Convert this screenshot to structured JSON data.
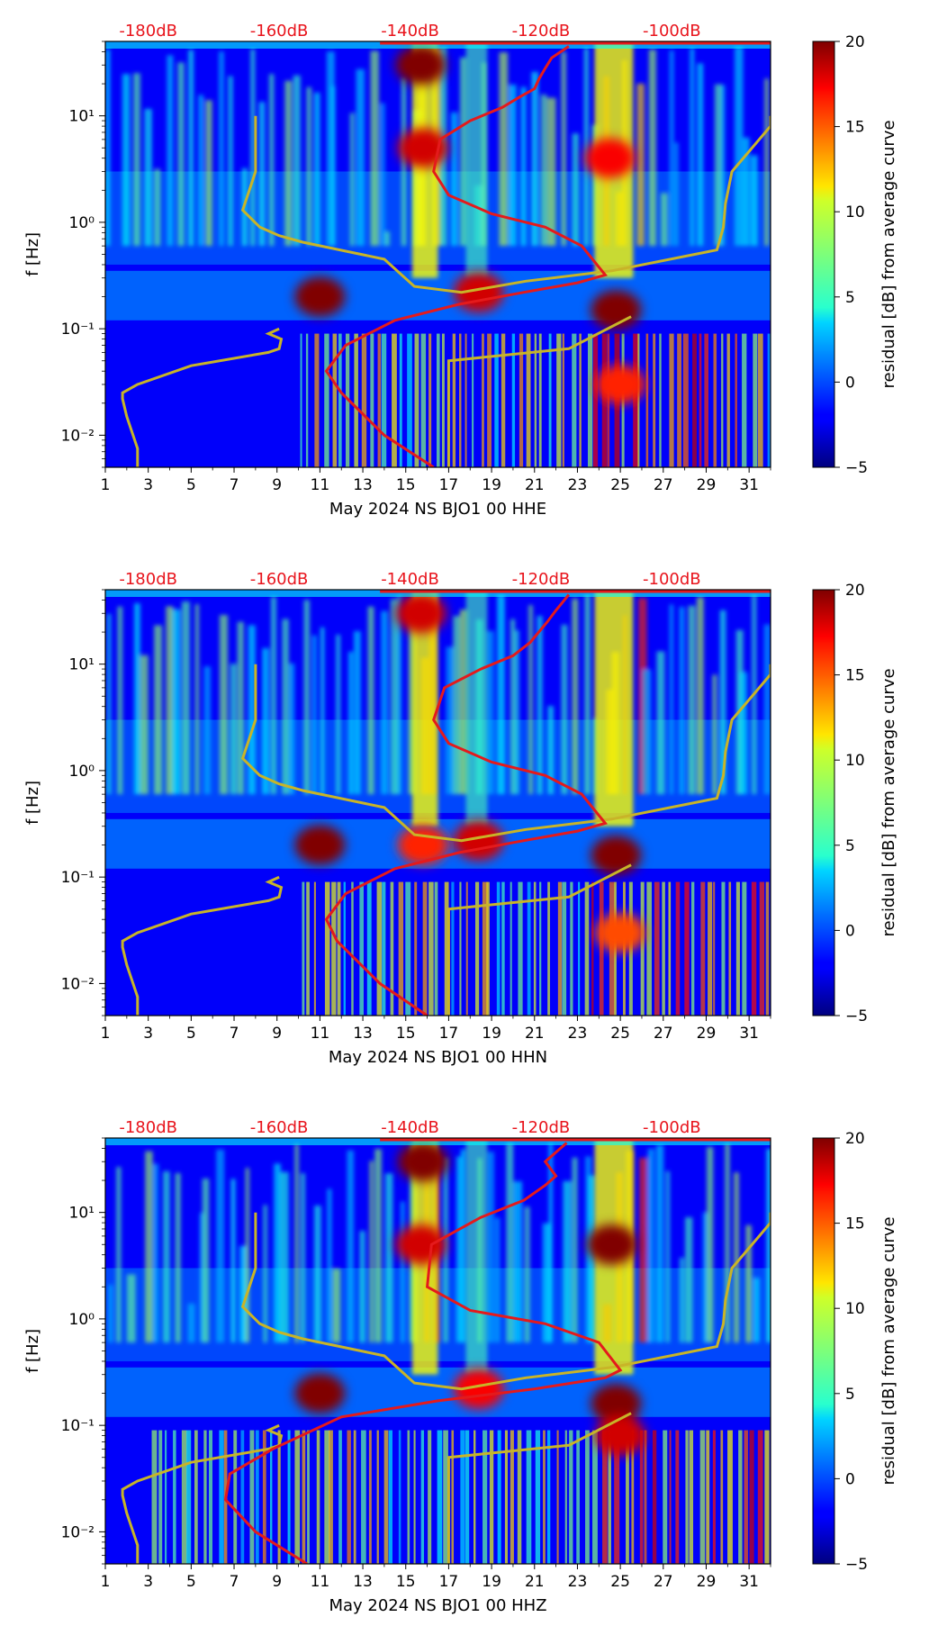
{
  "colors": {
    "noise_model": "#c8b428",
    "median_curve": "#e41a1c",
    "db_labels": "#e8141c"
  },
  "colorbar": {
    "label": "residual [dB] from average curve",
    "min": -5,
    "max": 20,
    "ticks": [
      -5,
      0,
      5,
      10,
      15,
      20
    ],
    "tick_labels": [
      "−5",
      "0",
      "5",
      "10",
      "15",
      "20"
    ],
    "colormap": "jet"
  },
  "chart_data": [
    {
      "type": "heatmap",
      "title": "",
      "xlabel": "May 2024 NS BJO1 00 HHE",
      "ylabel": "f [Hz]",
      "x_ticks": [
        "1",
        "3",
        "5",
        "7",
        "9",
        "11",
        "13",
        "15",
        "17",
        "19",
        "21",
        "23",
        "25",
        "27",
        "29",
        "31"
      ],
      "x_range": [
        1,
        32
      ],
      "y_scale": "log",
      "y_range": [
        0.005,
        50
      ],
      "y_tick_labels": [
        "10⁻²",
        "10⁻¹",
        "10⁰",
        "10¹"
      ],
      "top_axis_labels": [
        "-180dB",
        "-160dB",
        "-140dB",
        "-120dB",
        "-100dB"
      ],
      "top_axis_days": [
        3,
        9.1,
        15.2,
        21.3,
        27.4
      ],
      "noise_model_curve": {
        "days": [
          8.0,
          8.0,
          7.4,
          8.2,
          9.1,
          10.2,
          14.0,
          15.4,
          17.6,
          20.6,
          24.6,
          29.5,
          29.8,
          29.9,
          30.2,
          32.0,
          32.0
        ],
        "freq": [
          10,
          3,
          1.3,
          0.9,
          0.75,
          0.65,
          0.45,
          0.25,
          0.22,
          0.28,
          0.35,
          0.55,
          0.9,
          1.5,
          3,
          8,
          10
        ],
        "lower_days": [
          2.5,
          2.5,
          2,
          1.8,
          1.8,
          2.5,
          5,
          8.6,
          9.1,
          9.2,
          8.6,
          9.1
        ],
        "lower_freq": [
          0.005,
          0.0075,
          0.015,
          0.022,
          0.025,
          0.03,
          0.045,
          0.06,
          0.065,
          0.08,
          0.09,
          0.1
        ]
      },
      "median_curve": {
        "days": [
          16.3,
          14.0,
          12.0,
          11.3,
          12.2,
          14.5,
          17.5,
          20.5,
          23.0,
          24.3,
          23.2,
          21.5,
          19.0,
          17.0,
          16.3,
          16.6,
          18.0,
          19.5,
          20.3,
          21.0,
          21.2,
          21.5,
          21.8,
          22.6
        ],
        "freq": [
          0.005,
          0.01,
          0.025,
          0.04,
          0.07,
          0.12,
          0.17,
          0.22,
          0.27,
          0.32,
          0.6,
          0.9,
          1.2,
          1.8,
          3,
          6,
          9,
          12,
          15,
          18,
          22,
          28,
          35,
          45
        ]
      },
      "hotspots": [
        {
          "day": 11.0,
          "freq": 0.2,
          "level": 20
        },
        {
          "day": 15.7,
          "freq": 30,
          "level": 20
        },
        {
          "day": 15.8,
          "freq": 5,
          "level": 18
        },
        {
          "day": 18.4,
          "freq": 0.22,
          "level": 18
        },
        {
          "day": 24.5,
          "freq": 4,
          "level": 17
        },
        {
          "day": 24.8,
          "freq": 0.15,
          "level": 20
        },
        {
          "day": 25.0,
          "freq": 0.03,
          "level": 16
        }
      ]
    },
    {
      "type": "heatmap",
      "title": "",
      "xlabel": "May 2024 NS BJO1 00 HHN",
      "ylabel": "f [Hz]",
      "x_ticks": [
        "1",
        "3",
        "5",
        "7",
        "9",
        "11",
        "13",
        "15",
        "17",
        "19",
        "21",
        "23",
        "25",
        "27",
        "29",
        "31"
      ],
      "x_range": [
        1,
        32
      ],
      "y_scale": "log",
      "y_range": [
        0.005,
        50
      ],
      "y_tick_labels": [
        "10⁻²",
        "10⁻¹",
        "10⁰",
        "10¹"
      ],
      "top_axis_labels": [
        "-180dB",
        "-160dB",
        "-140dB",
        "-120dB",
        "-100dB"
      ],
      "top_axis_days": [
        3,
        9.1,
        15.2,
        21.3,
        27.4
      ],
      "noise_model_curve": {
        "days": [
          8.0,
          8.0,
          7.4,
          8.2,
          9.1,
          10.2,
          14.0,
          15.4,
          17.6,
          20.6,
          24.6,
          29.5,
          29.8,
          29.9,
          30.2,
          32.0,
          32.0
        ],
        "freq": [
          10,
          3,
          1.3,
          0.9,
          0.75,
          0.65,
          0.45,
          0.25,
          0.22,
          0.28,
          0.35,
          0.55,
          0.9,
          1.5,
          3,
          8,
          10
        ],
        "lower_days": [
          2.5,
          2.5,
          2,
          1.8,
          1.8,
          2.5,
          5,
          8.6,
          9.1,
          9.2,
          8.6,
          9.1
        ],
        "lower_freq": [
          0.005,
          0.0075,
          0.015,
          0.022,
          0.025,
          0.03,
          0.045,
          0.06,
          0.065,
          0.08,
          0.09,
          0.1
        ]
      },
      "median_curve": {
        "days": [
          16.0,
          13.8,
          11.8,
          11.3,
          12.2,
          14.5,
          17.5,
          20.5,
          23.0,
          24.3,
          23.2,
          21.5,
          19.0,
          17.0,
          16.3,
          16.8,
          18.5,
          20.0,
          20.8,
          21.2,
          21.6,
          22.0,
          22.6
        ],
        "freq": [
          0.005,
          0.01,
          0.025,
          0.04,
          0.07,
          0.12,
          0.17,
          0.22,
          0.27,
          0.32,
          0.6,
          0.9,
          1.2,
          1.8,
          3,
          6,
          9,
          12,
          16,
          20,
          25,
          32,
          45
        ]
      },
      "hotspots": [
        {
          "day": 11.0,
          "freq": 0.2,
          "level": 20
        },
        {
          "day": 15.7,
          "freq": 30,
          "level": 18
        },
        {
          "day": 15.8,
          "freq": 0.2,
          "level": 16
        },
        {
          "day": 18.4,
          "freq": 0.22,
          "level": 18
        },
        {
          "day": 24.8,
          "freq": 0.16,
          "level": 20
        },
        {
          "day": 25.0,
          "freq": 0.03,
          "level": 15
        }
      ]
    },
    {
      "type": "heatmap",
      "title": "",
      "xlabel": "May 2024 NS BJO1 00 HHZ",
      "ylabel": "f [Hz]",
      "x_ticks": [
        "1",
        "3",
        "5",
        "7",
        "9",
        "11",
        "13",
        "15",
        "17",
        "19",
        "21",
        "23",
        "25",
        "27",
        "29",
        "31"
      ],
      "x_range": [
        1,
        32
      ],
      "y_scale": "log",
      "y_range": [
        0.005,
        50
      ],
      "y_tick_labels": [
        "10⁻²",
        "10⁻¹",
        "10⁰",
        "10¹"
      ],
      "top_axis_labels": [
        "-180dB",
        "-160dB",
        "-140dB",
        "-120dB",
        "-100dB"
      ],
      "top_axis_days": [
        3,
        9.1,
        15.2,
        21.3,
        27.4
      ],
      "noise_model_curve": {
        "days": [
          8.0,
          8.0,
          7.4,
          8.2,
          9.1,
          10.2,
          14.0,
          15.4,
          17.6,
          20.6,
          24.6,
          29.5,
          29.8,
          29.9,
          30.2,
          32.0,
          32.0
        ],
        "freq": [
          10,
          3,
          1.3,
          0.9,
          0.75,
          0.65,
          0.45,
          0.25,
          0.22,
          0.28,
          0.35,
          0.55,
          0.9,
          1.5,
          3,
          8,
          10
        ],
        "lower_days": [
          2.5,
          2.5,
          2,
          1.8,
          1.8,
          2.5,
          5,
          8.6,
          9.1,
          9.2,
          8.6,
          9.1
        ],
        "lower_freq": [
          0.005,
          0.0075,
          0.015,
          0.022,
          0.025,
          0.03,
          0.045,
          0.06,
          0.065,
          0.08,
          0.09,
          0.1
        ]
      },
      "median_curve": {
        "days": [
          10.4,
          8.0,
          6.6,
          6.8,
          8.8,
          12.0,
          16.5,
          21.0,
          24.3,
          25.0,
          24.0,
          21.5,
          18.0,
          16.0,
          16.2,
          18.5,
          20.5,
          21.5,
          22.0,
          21.5,
          22.5
        ],
        "freq": [
          0.005,
          0.01,
          0.02,
          0.035,
          0.06,
          0.12,
          0.17,
          0.22,
          0.28,
          0.33,
          0.6,
          0.9,
          1.2,
          2,
          5,
          9,
          13,
          18,
          22,
          30,
          45
        ]
      },
      "hotspots": [
        {
          "day": 11.0,
          "freq": 0.2,
          "level": 20
        },
        {
          "day": 15.7,
          "freq": 5,
          "level": 18
        },
        {
          "day": 15.8,
          "freq": 30,
          "level": 20
        },
        {
          "day": 18.4,
          "freq": 0.22,
          "level": 17
        },
        {
          "day": 24.6,
          "freq": 5,
          "level": 20
        },
        {
          "day": 24.8,
          "freq": 0.16,
          "level": 20
        },
        {
          "day": 25.0,
          "freq": 0.08,
          "level": 18
        }
      ]
    }
  ]
}
